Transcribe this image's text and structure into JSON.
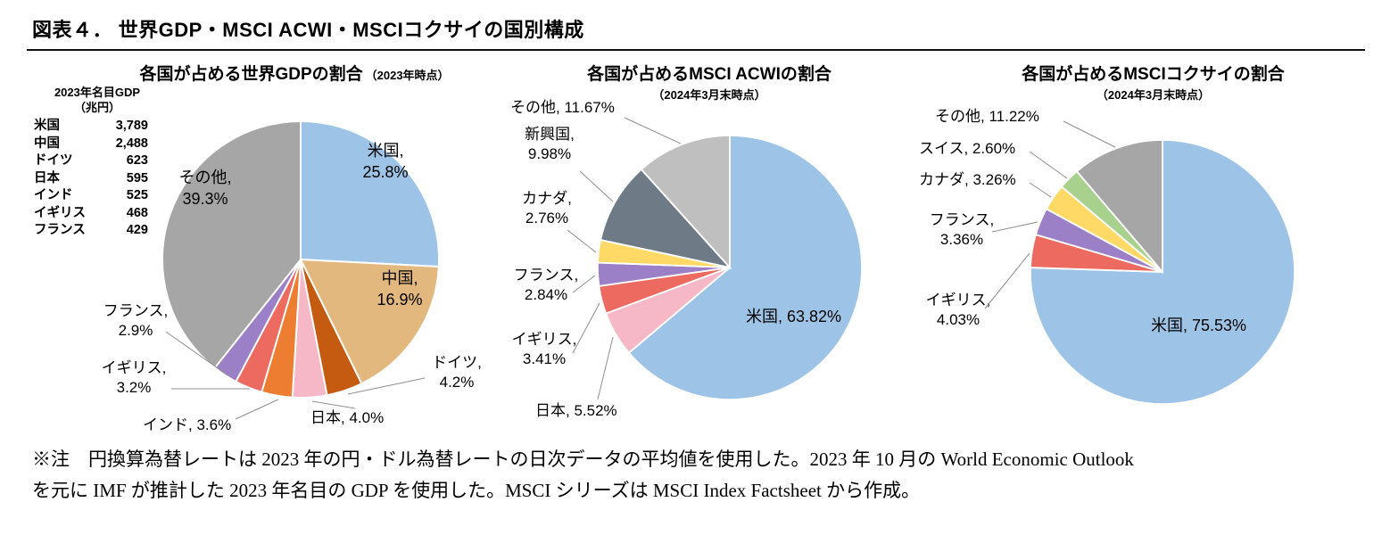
{
  "figure": {
    "title": "図表４． 世界GDP・MSCI ACWI・MSCIコクサイの国別構成",
    "footnote": "※注　円換算為替レートは 2023 年の円・ドル為替レートの日次データの平均値を使用した。2023 年 10 月の World Economic Outlook\nを元に IMF が推計した 2023 年名目の GDP を使用した。MSCI シリーズは MSCI Index Factsheet から作成。"
  },
  "chart_data": [
    {
      "type": "pie",
      "title": "各国が占める世界GDPの割合",
      "subtitle": "（2023年時点）",
      "start_angle": 0,
      "labels": [
        "米国",
        "中国",
        "ドイツ",
        "日本",
        "インド",
        "イギリス",
        "フランス",
        "その他"
      ],
      "values": [
        25.8,
        16.9,
        4.2,
        4.0,
        3.6,
        3.2,
        2.9,
        39.3
      ],
      "colors": [
        "#9DC3E6",
        "#E2B87E",
        "#C55A11",
        "#F6B8C6",
        "#ED7D31",
        "#EC6A5F",
        "#9B7FC7",
        "#A6A6A6"
      ],
      "unit": "%",
      "callouts": {
        "us": "米国,\n25.8%",
        "china": "中国,\n16.9%",
        "others": "その他,\n39.3%",
        "france": "フランス,\n2.9%",
        "uk": "イギリス,\n3.2%",
        "india": "インド, 3.6%",
        "japan": "日本, 4.0%",
        "germany": "ドイツ,\n4.2%"
      },
      "side_table": {
        "header": "2023年名目GDP",
        "unit": "（兆円）",
        "rows": [
          {
            "name": "米国",
            "value": "3,789"
          },
          {
            "name": "中国",
            "value": "2,488"
          },
          {
            "name": "ドイツ",
            "value": "623"
          },
          {
            "name": "日本",
            "value": "595"
          },
          {
            "name": "インド",
            "value": "525"
          },
          {
            "name": "イギリス",
            "value": "468"
          },
          {
            "name": "フランス",
            "value": "429"
          }
        ]
      }
    },
    {
      "type": "pie",
      "title": "各国が占めるMSCI ACWIの割合",
      "subtitle": "（2024年3月末時点）",
      "start_angle": 0,
      "labels": [
        "米国",
        "日本",
        "イギリス",
        "フランス",
        "カナダ",
        "新興国",
        "その他"
      ],
      "values": [
        63.82,
        5.52,
        3.41,
        2.84,
        2.76,
        9.98,
        11.67
      ],
      "colors": [
        "#9DC3E6",
        "#F6B8C6",
        "#EC6A5F",
        "#9B7FC7",
        "#FFD966",
        "#6E7B87",
        "#BFBFBF"
      ],
      "unit": "%",
      "callouts": {
        "others": "その他, 11.67%",
        "emerging": "新興国,\n9.98%",
        "canada": "カナダ,\n2.76%",
        "france": "フランス,\n2.84%",
        "uk": "イギリス,\n3.41%",
        "japan": "日本, 5.52%",
        "us": "米国, 63.82%"
      }
    },
    {
      "type": "pie",
      "title": "各国が占めるMSCIコクサイの割合",
      "subtitle": "（2024年3月末時点）",
      "start_angle": 0,
      "labels": [
        "米国",
        "イギリス",
        "フランス",
        "カナダ",
        "スイス",
        "その他"
      ],
      "values": [
        75.53,
        4.03,
        3.36,
        3.26,
        2.6,
        11.22
      ],
      "colors": [
        "#9DC3E6",
        "#EC6A5F",
        "#9B7FC7",
        "#FFD966",
        "#A9D18E",
        "#A6A6A6"
      ],
      "unit": "%",
      "callouts": {
        "others": "その他, 11.22%",
        "switzerland": "スイス, 2.60%",
        "canada": "カナダ, 3.26%",
        "france": "フランス,\n3.36%",
        "uk": "イギリス,\n4.03%",
        "us": "米国, 75.53%"
      }
    }
  ]
}
